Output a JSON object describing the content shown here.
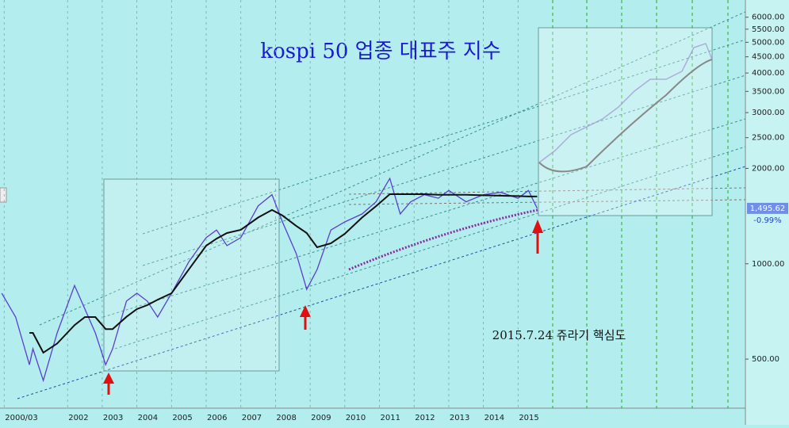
{
  "chart_data": {
    "type": "line",
    "title": "kospi 50 업종 대표주 지수",
    "annotation": "2015.7.24 쥬라기 핵심도",
    "log_scale": true,
    "xlim": [
      2000.05,
      2021.56
    ],
    "ylim": [
      350,
      6800
    ],
    "xticks": [
      {
        "value": 2000.17,
        "label": "2000/03"
      },
      2002,
      2003,
      2004,
      2005,
      2006,
      2007,
      2008,
      2009,
      2010,
      2011,
      2012,
      2013,
      2014,
      2015
    ],
    "yticks": [
      {
        "value": 500,
        "label": "500.00"
      },
      {
        "value": 1000,
        "label": "1000.00"
      },
      {
        "value": 2000,
        "label": "2000.00"
      },
      {
        "value": 2500,
        "label": "2500.00"
      },
      {
        "value": 3000,
        "label": "3000.00"
      },
      {
        "value": 3500,
        "label": "3500.00"
      },
      {
        "value": 4000,
        "label": "4000.00"
      },
      {
        "value": 4500,
        "label": "4500.00"
      },
      {
        "value": 5000,
        "label": "5000.00"
      },
      {
        "value": 5500,
        "label": "5500.00"
      },
      {
        "value": 6000,
        "label": "6000.00"
      }
    ],
    "x": [
      2000.1,
      2000.5,
      2000.9,
      2001.0,
      2001.3,
      2001.7,
      2002.2,
      2002.5,
      2002.8,
      2003.1,
      2003.3,
      2003.7,
      2004.0,
      2004.3,
      2004.6,
      2005.0,
      2005.5,
      2006.0,
      2006.3,
      2006.6,
      2007.0,
      2007.5,
      2007.9,
      2008.2,
      2008.6,
      2008.9,
      2009.2,
      2009.6,
      2010.0,
      2010.5,
      2010.9,
      2011.3,
      2011.6,
      2011.9,
      2012.3,
      2012.7,
      2013.0,
      2013.5,
      2014.0,
      2014.5,
      2015.0,
      2015.3,
      2015.55
    ],
    "series": [
      {
        "color": "#5a3fd0",
        "values": [
          807,
          679,
          480,
          539,
          428,
          605,
          854,
          719,
          605,
          480,
          539,
          762,
          807,
          762,
          679,
          807,
          1015,
          1209,
          1278,
          1141,
          1209,
          1523,
          1652,
          1355,
          1076,
          830,
          959,
          1278,
          1355,
          1436,
          1569,
          1859,
          1436,
          1569,
          1652,
          1610,
          1703,
          1569,
          1652,
          1680,
          1610,
          1703,
          1496
        ]
      },
      {
        "color": "#111111",
        "values": [
          null,
          null,
          605,
          605,
          524,
          560,
          640,
          679,
          679,
          622,
          622,
          680,
          719,
          740,
          770,
          807,
          960,
          1140,
          1200,
          1250,
          1279,
          1400,
          1478,
          1420,
          1316,
          1250,
          1127,
          1160,
          1243,
          1400,
          1520,
          1658,
          1658,
          1658,
          1658,
          1650,
          1650,
          1650,
          1645,
          1640,
          1635,
          1630,
          1630
        ]
      }
    ],
    "current_price": {
      "value": 1495.62,
      "label": "1,495.62"
    },
    "change": {
      "value": -0.99,
      "label": "-0.99%"
    }
  }
}
